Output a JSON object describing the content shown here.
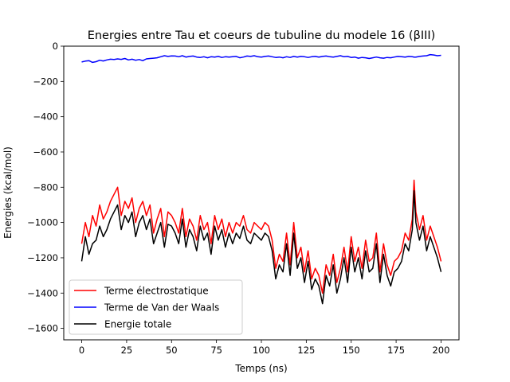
{
  "chart_data": {
    "type": "line",
    "title": "Energies entre Tau et coeurs de tubuline du modele 16 (βIII)",
    "xlabel": "Temps (ns)",
    "ylabel": "Energies (kcal/mol)",
    "xlim": [
      -10,
      210
    ],
    "ylim": [
      -1665,
      0
    ],
    "xticks": [
      0,
      25,
      50,
      75,
      100,
      125,
      150,
      175,
      200
    ],
    "yticks": [
      0,
      -200,
      -400,
      -600,
      -800,
      -1000,
      -1200,
      -1400,
      -1600
    ],
    "xtick_labels": [
      "0",
      "25",
      "50",
      "75",
      "100",
      "125",
      "150",
      "175",
      "200"
    ],
    "ytick_labels": [
      "0",
      "−200",
      "−400",
      "−600",
      "−800",
      "−1000",
      "−1200",
      "−1400",
      "−1600"
    ],
    "grid": false,
    "legend_position": "lower-left",
    "x": [
      0,
      2,
      4,
      6,
      8,
      10,
      12,
      14,
      16,
      18,
      20,
      22,
      24,
      26,
      28,
      30,
      32,
      34,
      36,
      38,
      40,
      42,
      44,
      46,
      48,
      50,
      52,
      54,
      56,
      58,
      60,
      62,
      64,
      66,
      68,
      70,
      72,
      74,
      76,
      78,
      80,
      82,
      84,
      86,
      88,
      90,
      92,
      94,
      96,
      98,
      100,
      102,
      104,
      106,
      108,
      110,
      112,
      114,
      116,
      118,
      120,
      122,
      124,
      126,
      128,
      130,
      132,
      134,
      136,
      138,
      140,
      142,
      144,
      146,
      148,
      150,
      152,
      154,
      156,
      158,
      160,
      162,
      164,
      166,
      168,
      170,
      172,
      174,
      176,
      178,
      180,
      182,
      184,
      185,
      186,
      188,
      190,
      192,
      194,
      196,
      198,
      200
    ],
    "series": [
      {
        "name": "Terme électrostatique",
        "color": "#ff0000",
        "values": [
          -1120,
          -1000,
          -1080,
          -960,
          -1020,
          -900,
          -980,
          -940,
          -880,
          -840,
          -800,
          -960,
          -880,
          -920,
          -860,
          -1000,
          -920,
          -880,
          -960,
          -900,
          -1060,
          -980,
          -920,
          -1080,
          -940,
          -960,
          -1000,
          -1060,
          -920,
          -1080,
          -980,
          -1020,
          -1100,
          -960,
          -1040,
          -1000,
          -1120,
          -960,
          -1040,
          -980,
          -1080,
          -1000,
          -1060,
          -1000,
          -1020,
          -960,
          -1040,
          -1060,
          -1000,
          -1020,
          -1040,
          -1000,
          -1020,
          -1100,
          -1260,
          -1180,
          -1220,
          -1060,
          -1240,
          -1000,
          -1200,
          -1140,
          -1280,
          -1160,
          -1320,
          -1260,
          -1300,
          -1400,
          -1240,
          -1300,
          -1180,
          -1340,
          -1260,
          -1140,
          -1280,
          -1080,
          -1220,
          -1140,
          -1260,
          -1100,
          -1220,
          -1200,
          -1060,
          -1280,
          -1120,
          -1240,
          -1300,
          -1220,
          -1200,
          -1160,
          -1060,
          -1100,
          -980,
          -760,
          -940,
          -1040,
          -960,
          -1100,
          -1020,
          -1080,
          -1140,
          -1220
        ]
      },
      {
        "name": "Terme de Van der Waals",
        "color": "#0000ff",
        "values": [
          -90,
          -85,
          -82,
          -92,
          -88,
          -80,
          -84,
          -78,
          -74,
          -76,
          -72,
          -75,
          -70,
          -78,
          -74,
          -80,
          -76,
          -82,
          -72,
          -70,
          -68,
          -66,
          -60,
          -54,
          -58,
          -55,
          -56,
          -60,
          -54,
          -62,
          -58,
          -56,
          -62,
          -64,
          -60,
          -66,
          -60,
          -62,
          -58,
          -64,
          -60,
          -62,
          -60,
          -58,
          -66,
          -62,
          -56,
          -58,
          -54,
          -60,
          -62,
          -58,
          -56,
          -60,
          -64,
          -62,
          -66,
          -60,
          -64,
          -58,
          -62,
          -58,
          -60,
          -64,
          -60,
          -58,
          -62,
          -58,
          -56,
          -60,
          -62,
          -58,
          -54,
          -60,
          -58,
          -64,
          -62,
          -68,
          -64,
          -66,
          -70,
          -66,
          -62,
          -66,
          -68,
          -64,
          -66,
          -62,
          -58,
          -60,
          -62,
          -58,
          -60,
          -62,
          -62,
          -58,
          -56,
          -54,
          -48,
          -50,
          -54,
          -52
        ]
      },
      {
        "name": "Energie totale",
        "color": "#000000",
        "values": [
          -1220,
          -1080,
          -1180,
          -1120,
          -1100,
          -1020,
          -1080,
          -1040,
          -980,
          -940,
          -900,
          -1040,
          -960,
          -1000,
          -940,
          -1080,
          -1000,
          -960,
          -1040,
          -980,
          -1120,
          -1060,
          -1000,
          -1140,
          -1010,
          -1020,
          -1060,
          -1120,
          -980,
          -1140,
          -1040,
          -1080,
          -1160,
          -1020,
          -1100,
          -1060,
          -1180,
          -1020,
          -1100,
          -1040,
          -1140,
          -1060,
          -1120,
          -1060,
          -1090,
          -1020,
          -1100,
          -1120,
          -1060,
          -1080,
          -1100,
          -1060,
          -1080,
          -1160,
          -1320,
          -1240,
          -1280,
          -1120,
          -1300,
          -1060,
          -1260,
          -1200,
          -1340,
          -1220,
          -1380,
          -1320,
          -1360,
          -1460,
          -1300,
          -1360,
          -1240,
          -1400,
          -1320,
          -1200,
          -1340,
          -1140,
          -1280,
          -1200,
          -1320,
          -1160,
          -1280,
          -1260,
          -1120,
          -1340,
          -1180,
          -1300,
          -1360,
          -1280,
          -1260,
          -1220,
          -1120,
          -1160,
          -1040,
          -820,
          -1000,
          -1100,
          -1020,
          -1160,
          -1080,
          -1140,
          -1200,
          -1280
        ]
      }
    ]
  }
}
